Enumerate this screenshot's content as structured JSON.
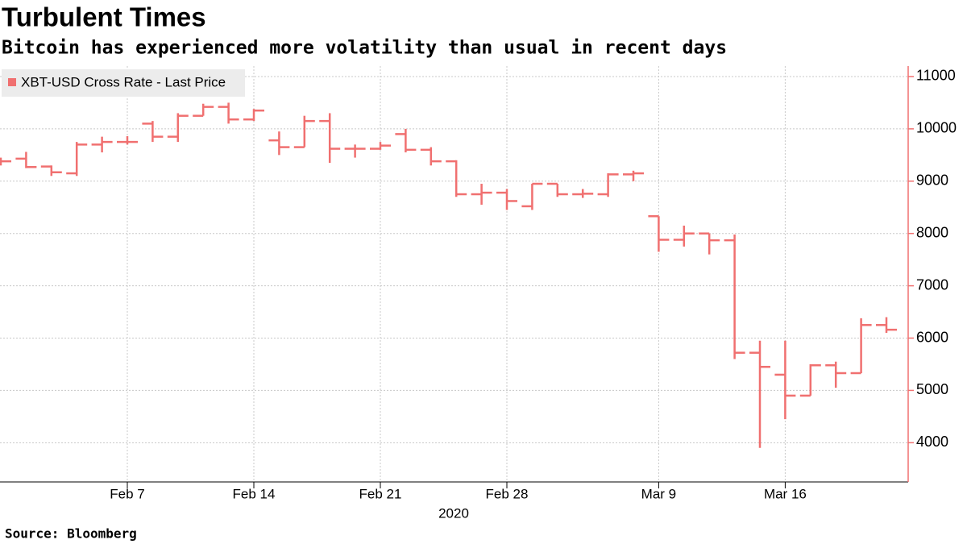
{
  "chart_data": {
    "type": "ohlc",
    "title": "Turbulent Times",
    "subtitle": "Bitcoin has experienced more volatility than usual in recent days",
    "source": "Source: Bloomberg",
    "x_axis_label": "2020",
    "x": [
      "2020-01-31",
      "2020-02-03",
      "2020-02-04",
      "2020-02-05",
      "2020-02-06",
      "2020-02-07",
      "2020-02-10",
      "2020-02-11",
      "2020-02-12",
      "2020-02-13",
      "2020-02-14",
      "2020-02-17",
      "2020-02-18",
      "2020-02-19",
      "2020-02-20",
      "2020-02-21",
      "2020-02-24",
      "2020-02-25",
      "2020-02-26",
      "2020-02-27",
      "2020-02-28",
      "2020-03-02",
      "2020-03-03",
      "2020-03-04",
      "2020-03-05",
      "2020-03-06",
      "2020-03-09",
      "2020-03-10",
      "2020-03-11",
      "2020-03-12",
      "2020-03-13",
      "2020-03-16",
      "2020-03-17",
      "2020-03-18",
      "2020-03-19",
      "2020-03-20"
    ],
    "series": [
      {
        "name": "XBT-USD Cross Rate - Last Price",
        "color": "#f07070",
        "open": [
          9350,
          9430,
          9280,
          9150,
          9700,
          9750,
          10100,
          9850,
          10250,
          10420,
          10180,
          9780,
          9650,
          10150,
          9620,
          9620,
          9900,
          9600,
          9380,
          8750,
          8780,
          8520,
          8950,
          8750,
          8750,
          9130,
          8330,
          7880,
          8000,
          7870,
          5720,
          5300,
          4900,
          5480,
          5330,
          6250
        ],
        "high": [
          9450,
          9560,
          9300,
          9750,
          9850,
          9860,
          10150,
          10300,
          10480,
          10500,
          10380,
          9950,
          10250,
          10300,
          9700,
          9750,
          10000,
          9650,
          9400,
          8950,
          8850,
          8950,
          8950,
          8850,
          9150,
          9200,
          8330,
          8150,
          8000,
          7980,
          5950,
          5950,
          5500,
          5550,
          6380,
          6400
        ],
        "low": [
          9300,
          9250,
          9100,
          9100,
          9550,
          9700,
          9750,
          9750,
          10250,
          10100,
          10150,
          9500,
          9650,
          9350,
          9450,
          9600,
          9550,
          9300,
          8700,
          8550,
          8450,
          8450,
          8700,
          8680,
          8700,
          9000,
          7650,
          7750,
          7600,
          5600,
          3900,
          4450,
          4900,
          5050,
          5330,
          6100
        ],
        "close": [
          9380,
          9270,
          9170,
          9700,
          9750,
          9750,
          9850,
          10250,
          10420,
          10180,
          10350,
          9650,
          10150,
          9620,
          9620,
          9680,
          9600,
          9380,
          8750,
          8780,
          8620,
          8950,
          8750,
          8760,
          9130,
          9150,
          7880,
          8000,
          7870,
          5720,
          5450,
          4900,
          5480,
          5330,
          6250,
          6160
        ]
      }
    ],
    "xlim": [
      "2020-01-31",
      "2020-03-20"
    ],
    "xticks": [
      {
        "value": "2020-02-07",
        "label": "Feb 7"
      },
      {
        "value": "2020-02-14",
        "label": "Feb 14"
      },
      {
        "value": "2020-02-21",
        "label": "Feb 21"
      },
      {
        "value": "2020-02-28",
        "label": "Feb 28"
      },
      {
        "value": "2020-03-09",
        "label": "Mar 9"
      },
      {
        "value": "2020-03-16",
        "label": "Mar 16"
      }
    ],
    "ylim": [
      3250,
      11200
    ],
    "yticks": [
      4000,
      5000,
      6000,
      7000,
      8000,
      9000,
      10000,
      11000
    ],
    "grid": true,
    "legend": "top-left"
  }
}
